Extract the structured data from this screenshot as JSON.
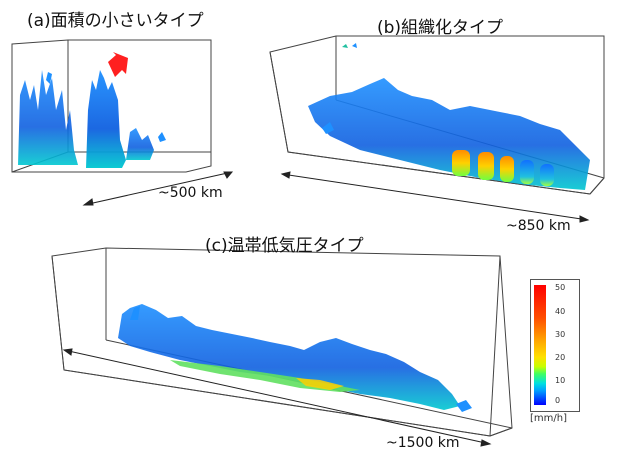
{
  "panels": {
    "a": {
      "title": "(a)面積の小さいタイプ",
      "scale": "~500 km"
    },
    "b": {
      "title": "(b)組織化タイプ",
      "scale": "~850 km"
    },
    "c": {
      "title": "(c)温帯低気圧タイプ",
      "scale": "~1500 km"
    }
  },
  "colorbar": {
    "unit": "[mm/h]",
    "ticks": [
      "50",
      "40",
      "30",
      "20",
      "10",
      "0"
    ]
  },
  "colors": {
    "arrow": "#ff2020",
    "box_line": "#333333"
  }
}
